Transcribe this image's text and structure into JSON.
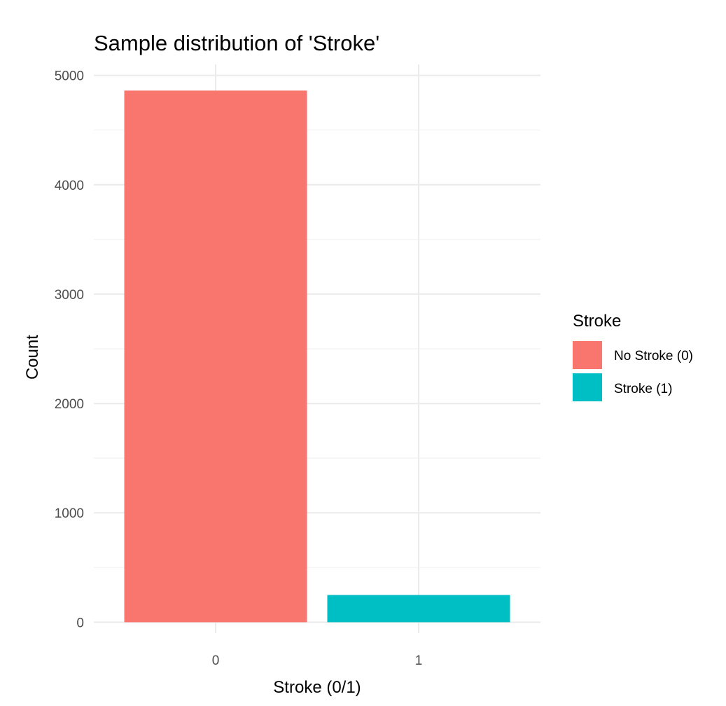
{
  "chart_data": {
    "type": "bar",
    "title": "Sample distribution of 'Stroke'",
    "xlabel": "Stroke (0/1)",
    "ylabel": "Count",
    "categories": [
      "0",
      "1"
    ],
    "values": [
      4861,
      249
    ],
    "ylim": [
      -100,
      5100
    ],
    "yticks": [
      0,
      1000,
      2000,
      3000,
      4000,
      5000
    ],
    "yticks_labels": [
      "0",
      "1000",
      "2000",
      "3000",
      "4000",
      "5000"
    ],
    "grid": true,
    "legend": {
      "title": "Stroke",
      "position": "right",
      "entries": [
        {
          "label": "No Stroke (0)",
          "color": "#F8766D"
        },
        {
          "label": "Stroke (1)",
          "color": "#00BFC4"
        }
      ]
    },
    "colors": [
      "#F8766D",
      "#00BFC4"
    ]
  }
}
